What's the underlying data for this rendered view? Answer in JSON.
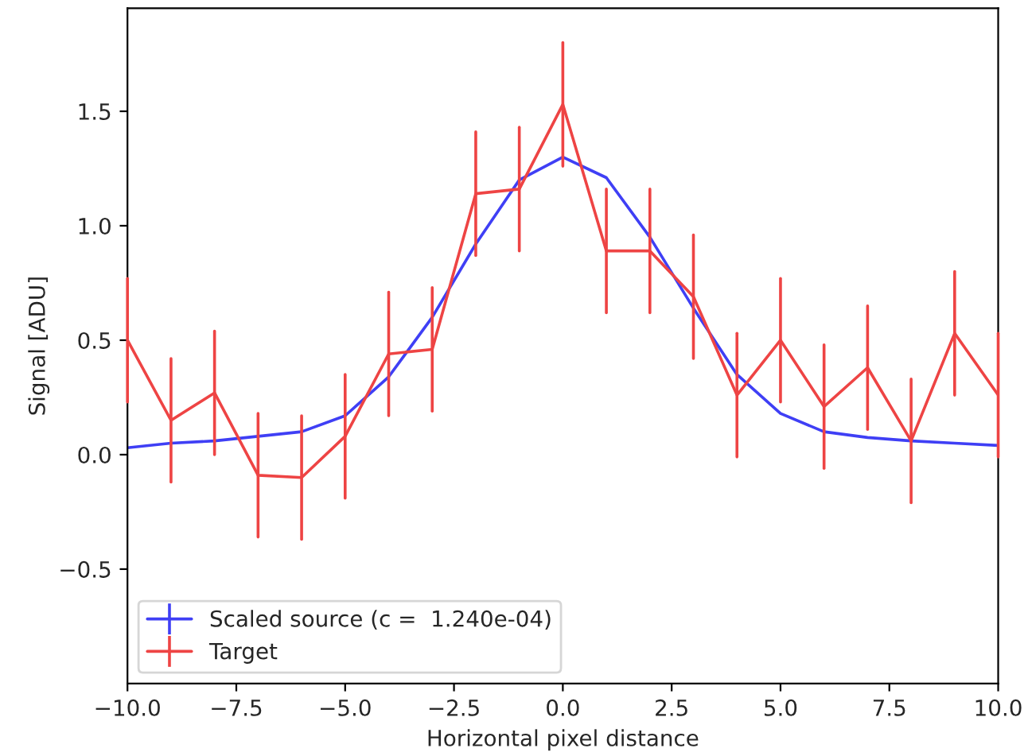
{
  "chart_data": {
    "type": "line",
    "xlabel": "Horizontal pixel distance",
    "ylabel": "Signal [ADU]",
    "x": [
      -10,
      -9,
      -8,
      -7,
      -6,
      -5,
      -4,
      -3,
      -2,
      -1,
      0,
      1,
      2,
      3,
      4,
      5,
      6,
      7,
      8,
      9,
      10
    ],
    "series": [
      {
        "name": "Scaled source (c =  1.240e-04)",
        "color": "#3f3ff5",
        "values": [
          0.03,
          0.05,
          0.06,
          0.08,
          0.1,
          0.17,
          0.34,
          0.6,
          0.92,
          1.2,
          1.3,
          1.21,
          0.95,
          0.64,
          0.35,
          0.18,
          0.1,
          0.075,
          0.06,
          0.05,
          0.04
        ]
      },
      {
        "name": "Target",
        "color": "#ee4444",
        "values": [
          0.5,
          0.15,
          0.27,
          -0.09,
          -0.1,
          0.08,
          0.44,
          0.46,
          1.14,
          1.16,
          1.53,
          0.89,
          0.89,
          0.69,
          0.26,
          0.5,
          0.21,
          0.38,
          0.06,
          0.53,
          0.26
        ],
        "errors": [
          0.27,
          0.27,
          0.27,
          0.27,
          0.27,
          0.27,
          0.27,
          0.27,
          0.27,
          0.27,
          0.27,
          0.27,
          0.27,
          0.27,
          0.27,
          0.27,
          0.27,
          0.27,
          0.27,
          0.27,
          0.27
        ]
      }
    ],
    "xlim": [
      -10,
      10
    ],
    "ylim": [
      -1.0,
      1.95
    ],
    "xticks": [
      {
        "value": -10,
        "label": "−10.0"
      },
      {
        "value": -7.5,
        "label": "−7.5"
      },
      {
        "value": -5,
        "label": "−5.0"
      },
      {
        "value": -2.5,
        "label": "−2.5"
      },
      {
        "value": 0,
        "label": "0.0"
      },
      {
        "value": 2.5,
        "label": "2.5"
      },
      {
        "value": 5,
        "label": "5.0"
      },
      {
        "value": 7.5,
        "label": "7.5"
      },
      {
        "value": 10,
        "label": "10.0"
      }
    ],
    "yticks": [
      {
        "value": -0.5,
        "label": "−0.5"
      },
      {
        "value": 0,
        "label": "0.0"
      },
      {
        "value": 0.5,
        "label": "0.5"
      },
      {
        "value": 1.0,
        "label": "1.0"
      },
      {
        "value": 1.5,
        "label": "1.5"
      }
    ],
    "legend": "bottom left",
    "grid": false
  }
}
